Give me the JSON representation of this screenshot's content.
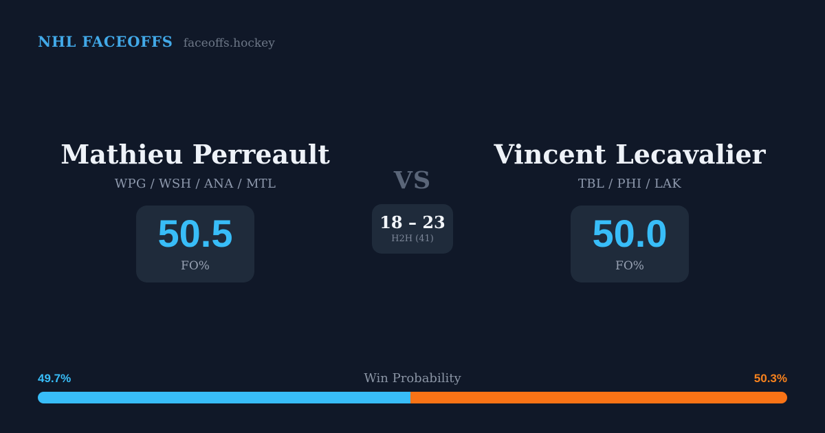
{
  "header": {
    "brand": "NHL FACEOFFS",
    "site": "faceoffs.hockey"
  },
  "players": {
    "left": {
      "name": "Mathieu Perreault",
      "teams": "WPG / WSH / ANA / MTL",
      "fo_pct": "50.5",
      "stat_label": "FO%"
    },
    "right": {
      "name": "Vincent Lecavalier",
      "teams": "TBL / PHI / LAK",
      "fo_pct": "50.0",
      "stat_label": "FO%"
    }
  },
  "center": {
    "vs_label": "VS",
    "h2h_score": "18 – 23",
    "h2h_label": "H2H (41)"
  },
  "win_probability": {
    "title": "Win Probability",
    "left_pct_label": "49.7%",
    "right_pct_label": "50.3%",
    "left_pct": 49.7,
    "right_pct": 50.3
  },
  "colors": {
    "background": "#101828",
    "box": "#1f2b3b",
    "accent_blue": "#38bdf8",
    "accent_orange": "#f97316"
  }
}
